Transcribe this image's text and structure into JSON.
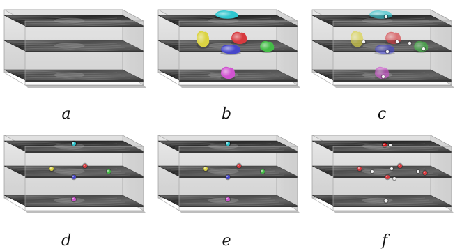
{
  "panels": [
    {
      "label": "a",
      "markers": "none"
    },
    {
      "label": "b",
      "markers": "blobs"
    },
    {
      "label": "c",
      "markers": "blobs-with-points"
    },
    {
      "label": "d",
      "markers": "points"
    },
    {
      "label": "e",
      "markers": "points"
    },
    {
      "label": "f",
      "markers": "red-white-points"
    }
  ],
  "colors": {
    "cyan": "#2fc6cf",
    "yellow": "#d8cf1e",
    "red": "#d3141a",
    "blue": "#2424c4",
    "green": "#20b424",
    "magenta": "#cc33cc",
    "white": "#f4f4f4"
  }
}
